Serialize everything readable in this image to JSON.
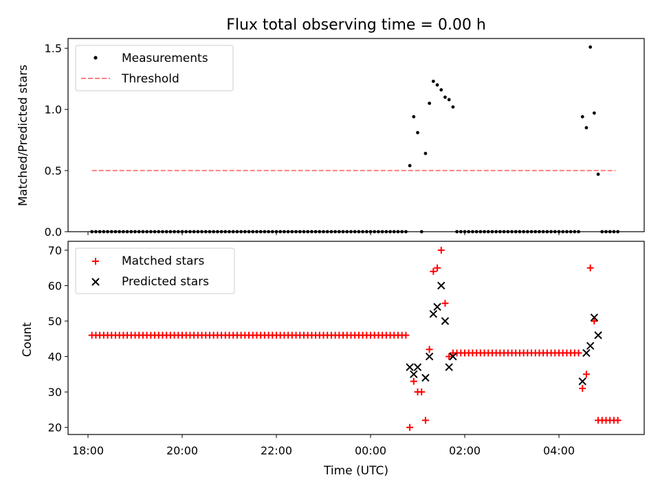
{
  "chart_data": [
    {
      "type": "scatter",
      "title": "Flux total observing time = 0.00 h",
      "ylabel": "Matched/Predicted stars",
      "ylim": [
        0,
        1.58
      ],
      "yticks": [
        0.0,
        0.5,
        1.0,
        1.5
      ],
      "ytick_labels": [
        "0.0",
        "0.5",
        "1.0",
        "1.5"
      ],
      "legend": {
        "position": "upper-left",
        "entries": [
          {
            "label": "Measurements",
            "marker": "dot",
            "color": "#000000"
          },
          {
            "label": "Threshold",
            "marker": "dashed-line",
            "color": "#ff7f7f"
          }
        ]
      },
      "threshold": {
        "value": 0.5,
        "x_start": "18:05",
        "x_end": "05:12",
        "color": "#ff7f7f"
      },
      "measurements": {
        "color": "#000000",
        "zero_runs": [
          {
            "start": "18:05",
            "end": "00:45",
            "step_min": 5
          },
          {
            "start": "01:50",
            "end": "04:25",
            "step_min": 5
          },
          {
            "start": "04:55",
            "end": "05:15",
            "step_min": 5
          }
        ],
        "points": [
          {
            "t": "00:50",
            "v": 0.54
          },
          {
            "t": "00:55",
            "v": 0.94
          },
          {
            "t": "01:00",
            "v": 0.81
          },
          {
            "t": "01:05",
            "v": 0.0
          },
          {
            "t": "01:10",
            "v": 0.64
          },
          {
            "t": "01:15",
            "v": 1.05
          },
          {
            "t": "01:20",
            "v": 1.23
          },
          {
            "t": "01:25",
            "v": 1.2
          },
          {
            "t": "01:30",
            "v": 1.16
          },
          {
            "t": "01:35",
            "v": 1.1
          },
          {
            "t": "01:40",
            "v": 1.08
          },
          {
            "t": "01:45",
            "v": 1.02
          },
          {
            "t": "04:30",
            "v": 0.94
          },
          {
            "t": "04:35",
            "v": 0.85
          },
          {
            "t": "04:40",
            "v": 1.51
          },
          {
            "t": "04:45",
            "v": 0.97
          },
          {
            "t": "04:50",
            "v": 0.47
          }
        ]
      }
    },
    {
      "type": "scatter",
      "ylabel": "Count",
      "xlabel": "Time (UTC)",
      "ylim": [
        18,
        72.5
      ],
      "yticks": [
        20,
        30,
        40,
        50,
        60,
        70
      ],
      "ytick_labels": [
        "20",
        "30",
        "40",
        "50",
        "60",
        "70"
      ],
      "xticks": [
        "18:00",
        "20:00",
        "22:00",
        "00:00",
        "02:00",
        "04:00"
      ],
      "legend": {
        "position": "upper-left",
        "entries": [
          {
            "label": "Matched stars",
            "marker": "plus",
            "color": "#ff0000"
          },
          {
            "label": "Predicted stars",
            "marker": "x",
            "color": "#000000"
          }
        ]
      },
      "series": [
        {
          "name": "Matched stars",
          "marker": "plus",
          "color": "#ff0000",
          "constant_runs": [
            {
              "start": "18:05",
              "end": "00:45",
              "step_min": 5,
              "value": 46
            },
            {
              "start": "01:50",
              "end": "04:25",
              "step_min": 5,
              "value": 41
            },
            {
              "start": "04:55",
              "end": "05:15",
              "step_min": 5,
              "value": 22
            }
          ],
          "points": [
            {
              "t": "00:50",
              "v": 20
            },
            {
              "t": "00:55",
              "v": 33
            },
            {
              "t": "01:00",
              "v": 30
            },
            {
              "t": "01:05",
              "v": 30
            },
            {
              "t": "01:10",
              "v": 22
            },
            {
              "t": "01:15",
              "v": 42
            },
            {
              "t": "01:20",
              "v": 64
            },
            {
              "t": "01:25",
              "v": 65
            },
            {
              "t": "01:30",
              "v": 70
            },
            {
              "t": "01:35",
              "v": 55
            },
            {
              "t": "01:40",
              "v": 40
            },
            {
              "t": "01:45",
              "v": 41
            },
            {
              "t": "04:30",
              "v": 31
            },
            {
              "t": "04:35",
              "v": 35
            },
            {
              "t": "04:40",
              "v": 65
            },
            {
              "t": "04:45",
              "v": 50
            },
            {
              "t": "04:50",
              "v": 22
            }
          ]
        },
        {
          "name": "Predicted stars",
          "marker": "x",
          "color": "#000000",
          "points": [
            {
              "t": "00:50",
              "v": 37
            },
            {
              "t": "00:55",
              "v": 35
            },
            {
              "t": "01:00",
              "v": 37
            },
            {
              "t": "01:10",
              "v": 34
            },
            {
              "t": "01:15",
              "v": 40
            },
            {
              "t": "01:20",
              "v": 52
            },
            {
              "t": "01:25",
              "v": 54
            },
            {
              "t": "01:30",
              "v": 60
            },
            {
              "t": "01:35",
              "v": 50
            },
            {
              "t": "01:40",
              "v": 37
            },
            {
              "t": "01:45",
              "v": 40
            },
            {
              "t": "04:30",
              "v": 33
            },
            {
              "t": "04:35",
              "v": 41
            },
            {
              "t": "04:40",
              "v": 43
            },
            {
              "t": "04:45",
              "v": 51
            },
            {
              "t": "04:50",
              "v": 46
            }
          ]
        }
      ]
    }
  ]
}
